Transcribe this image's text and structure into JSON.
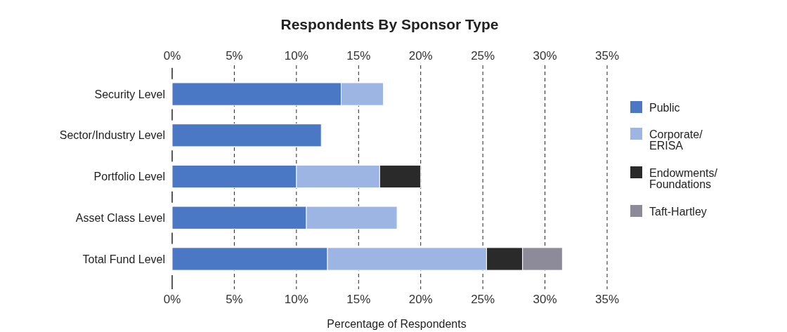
{
  "chart_data": {
    "type": "bar",
    "orientation": "horizontal",
    "stacked": true,
    "title": "Respondents By Sponsor Type",
    "xlabel": "Percentage of Respondents",
    "categories": [
      "Security Level",
      "Sector/Industry Level",
      "Portfolio Level",
      "Asset Class Level",
      "Total Fund Level"
    ],
    "series": [
      {
        "name": "Public",
        "color": "#4a78c4",
        "values": [
          13.6,
          12.0,
          10.0,
          10.8,
          12.5
        ]
      },
      {
        "name": "Corporate/ERISA",
        "color": "#9db5e3",
        "values": [
          3.4,
          null,
          6.7,
          7.3,
          12.8
        ]
      },
      {
        "name": "Endowments/Foundations",
        "color": "#2a2a2a",
        "values": [
          null,
          null,
          3.3,
          null,
          2.9
        ]
      },
      {
        "name": "Taft-Hartley",
        "color": "#8d8a99",
        "values": [
          null,
          null,
          null,
          null,
          3.2
        ]
      }
    ],
    "xlim": [
      0,
      35
    ],
    "xticks": [
      {
        "value": 0,
        "label": "0%"
      },
      {
        "value": 5,
        "label": "5%"
      },
      {
        "value": 10,
        "label": "10%"
      },
      {
        "value": 15,
        "label": "15%"
      },
      {
        "value": 20,
        "label": "20%"
      },
      {
        "value": 25,
        "label": "25%"
      },
      {
        "value": 30,
        "label": "30%"
      },
      {
        "value": 35,
        "label": "35%"
      }
    ],
    "x2lim": [
      0,
      35
    ],
    "x2ticks": [
      {
        "value": 0,
        "label": "0%"
      },
      {
        "value": 5,
        "label": "5%"
      },
      {
        "value": 10,
        "label": "10%"
      },
      {
        "value": 15,
        "label": "15%"
      },
      {
        "value": 20,
        "label": "20%"
      },
      {
        "value": 25,
        "label": "25%"
      },
      {
        "value": 30,
        "label": "30%"
      },
      {
        "value": 35,
        "label": "35%"
      }
    ],
    "grid": "x",
    "legend": "right"
  }
}
